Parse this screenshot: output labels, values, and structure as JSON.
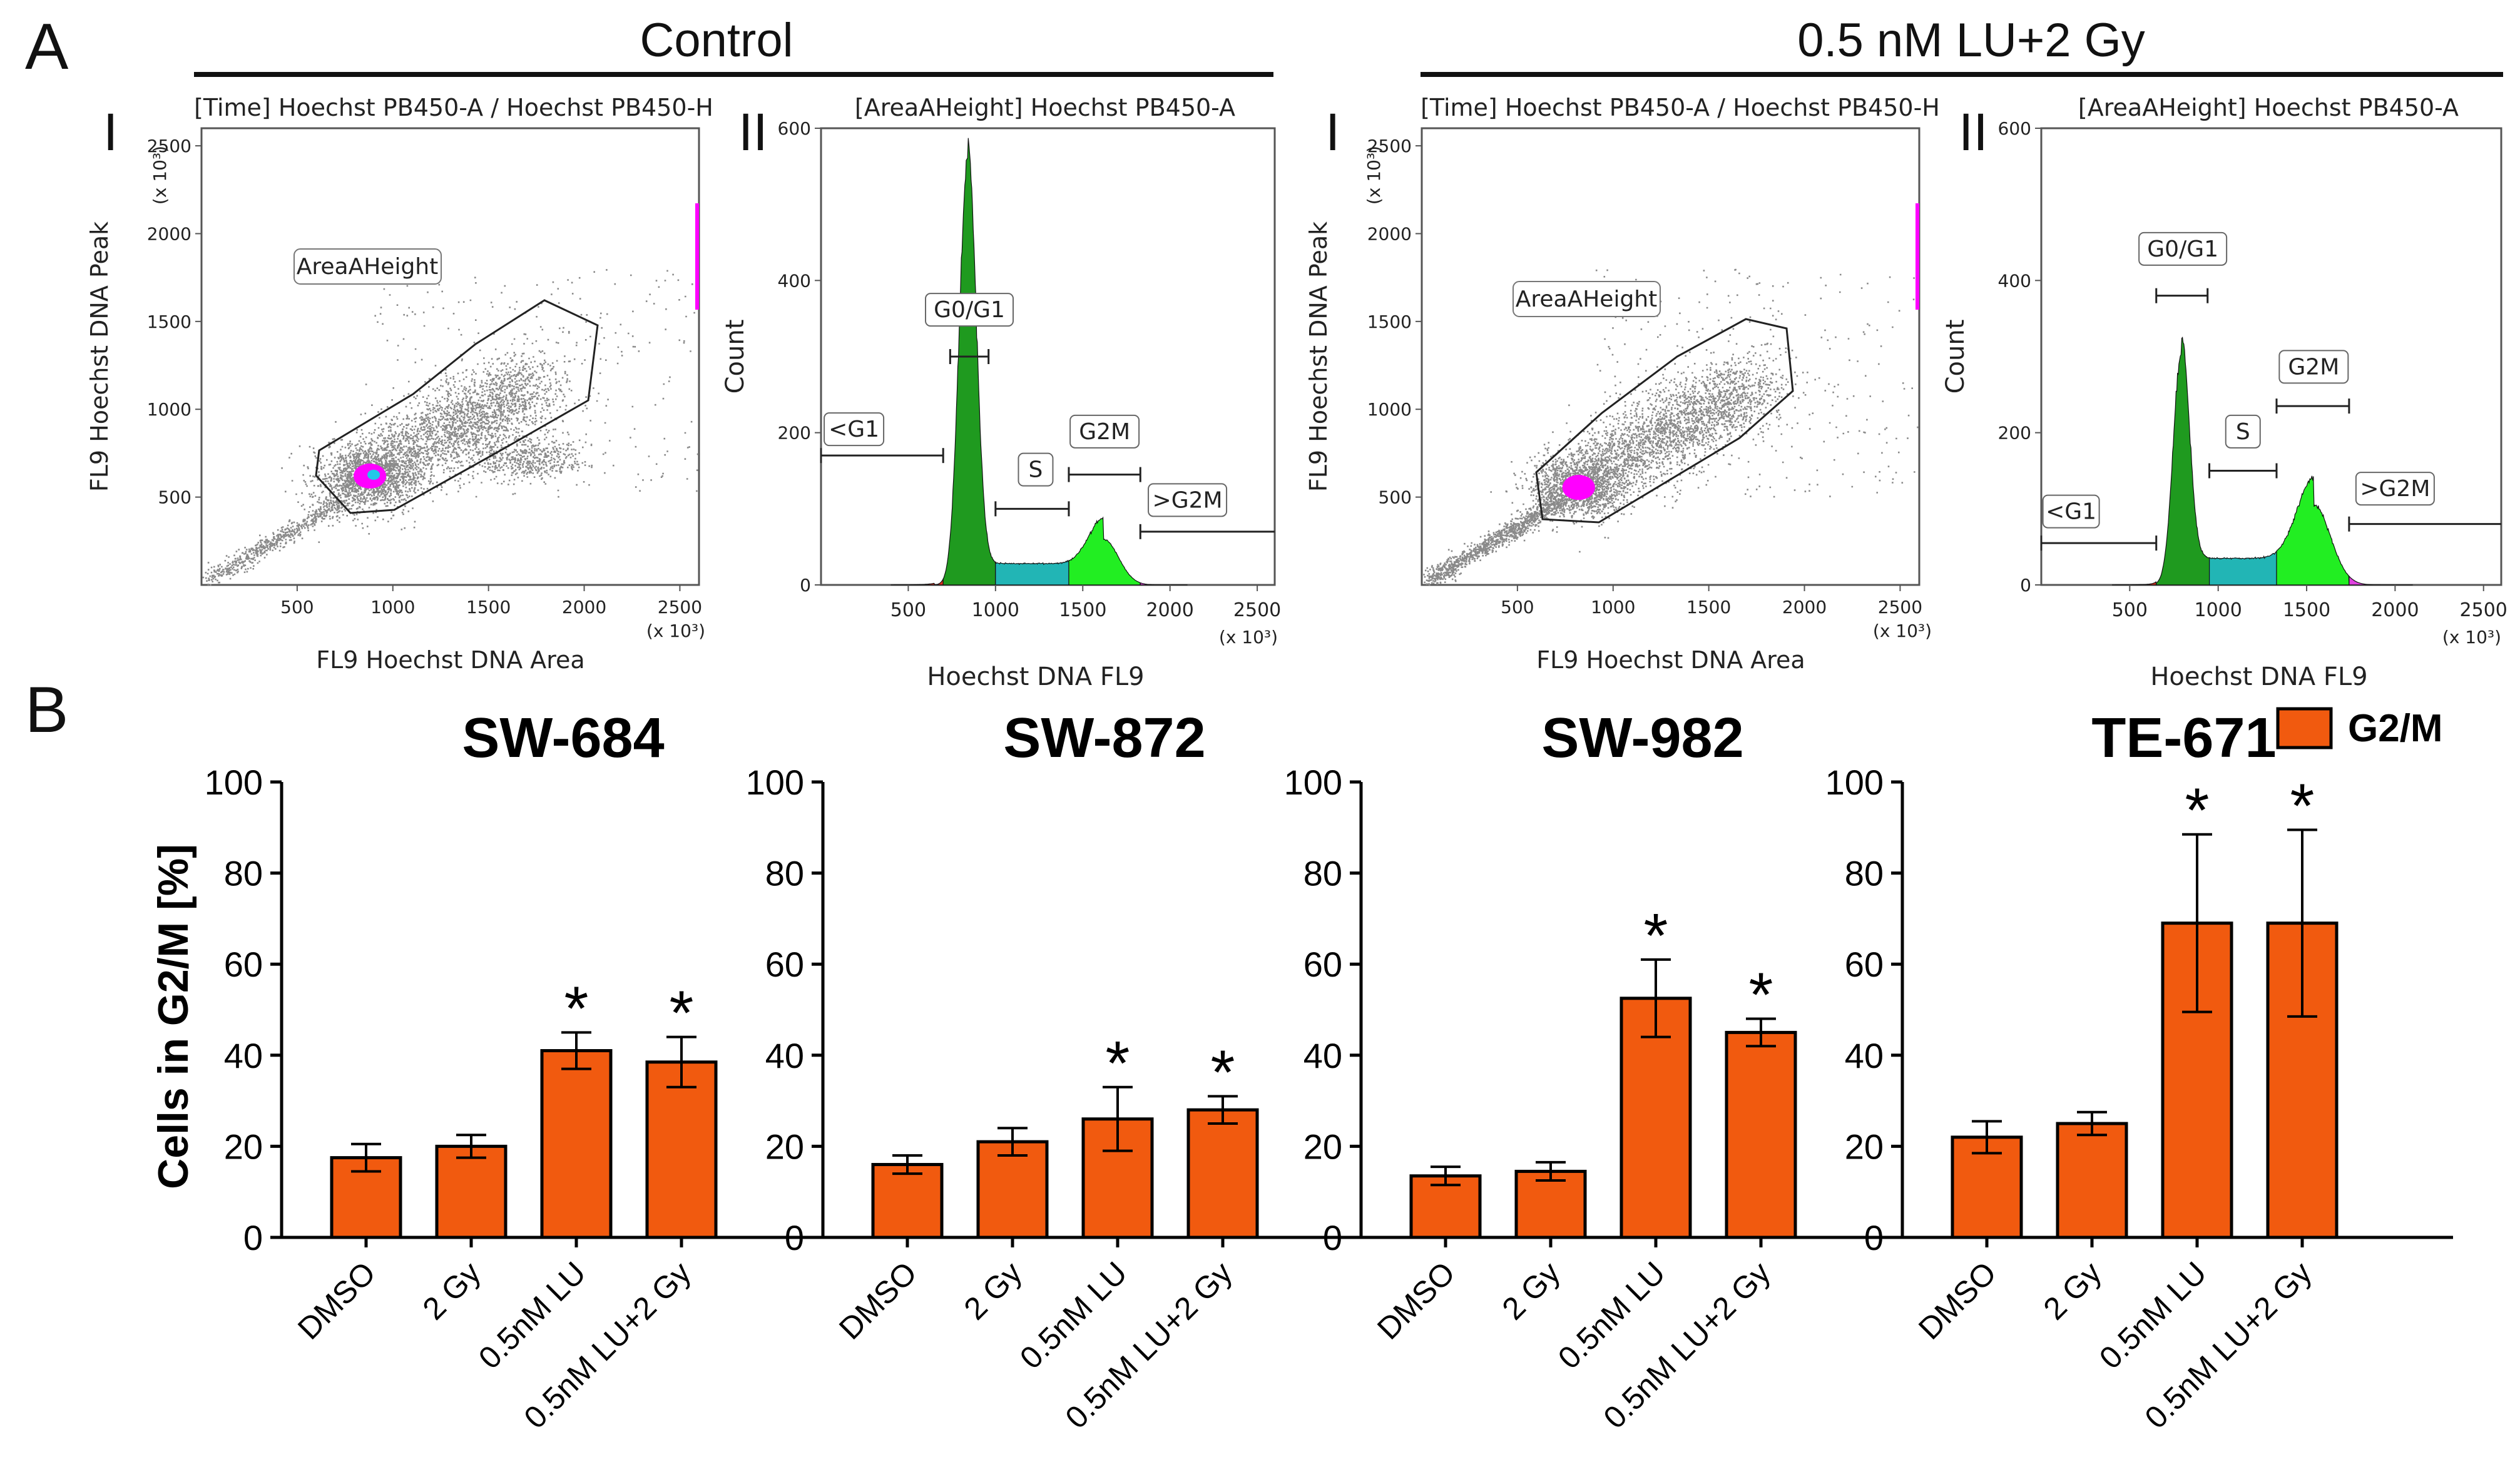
{
  "panel_labels": {
    "A": "A",
    "B": "B"
  },
  "section_a": {
    "groups": [
      {
        "title": "Control"
      },
      {
        "title": "0.5 nM LU+2 Gy"
      }
    ],
    "subpanels": {
      "I": "I",
      "II": "II"
    },
    "scatter": {
      "title": "[Time] Hoechst PB450-A / Hoechst PB450-H",
      "xlabel": "FL9 Hoechst DNA Area",
      "ylabel": "FL9 Hoechst DNA Peak",
      "gate_label": "AreaAHeight",
      "x_ticks": [
        "500",
        "1000",
        "1500",
        "2000",
        "2500"
      ],
      "y_ticks": [
        "500",
        "1000",
        "1500",
        "2000",
        "2500"
      ],
      "scale_x": "(x 10³)",
      "scale_y": "(x 10³)"
    },
    "histogram": {
      "title": "[AreaAHeight] Hoechst PB450-A",
      "xlabel": "Hoechst DNA FL9",
      "ylabel": "Count",
      "x_ticks": [
        "500",
        "1000",
        "1500",
        "2000",
        "2500"
      ],
      "y_ticks": [
        "0",
        "200",
        "400",
        "600"
      ],
      "scale_x": "(x 10³)",
      "gates": {
        "lt_g1": "<G1",
        "g0g1": "G0/G1",
        "s": "S",
        "g2m": "G2M",
        "gt_g2m": ">G2M"
      }
    },
    "colors": {
      "g1": "#1f9a1f",
      "s": "#22b5b5",
      "g2m": "#22ee22",
      "dots": "#8a8a8a",
      "core": "#ff00ff"
    }
  },
  "legend": {
    "label": "G2/M",
    "color": "#f15a0f"
  },
  "chart_data": [
    {
      "type": "bar",
      "title": "SW-684",
      "categories": [
        "DMSO",
        "2 Gy",
        "0.5nM LU",
        "0.5nM LU+2 Gy"
      ],
      "values": [
        17.5,
        20,
        41,
        38.5
      ],
      "errors": [
        3,
        2.5,
        4,
        5.5
      ],
      "significant": [
        "",
        "",
        "*",
        "*"
      ],
      "ylabel": "Cells in G2/M [%]",
      "ylim": [
        0,
        100
      ],
      "yticks": [
        "0",
        "20",
        "40",
        "60",
        "80",
        "100"
      ]
    },
    {
      "type": "bar",
      "title": "SW-872",
      "categories": [
        "DMSO",
        "2 Gy",
        "0.5nM LU",
        "0.5nM LU+2 Gy"
      ],
      "values": [
        16,
        21,
        26,
        28
      ],
      "errors": [
        2,
        3,
        7,
        3
      ],
      "significant": [
        "",
        "",
        "*",
        "*"
      ],
      "ylabel": "",
      "ylim": [
        0,
        100
      ],
      "yticks": [
        "0",
        "20",
        "40",
        "60",
        "80",
        "100"
      ]
    },
    {
      "type": "bar",
      "title": "SW-982",
      "categories": [
        "DMSO",
        "2 Gy",
        "0.5nM LU",
        "0.5nM LU+2 Gy"
      ],
      "values": [
        13.5,
        14.5,
        52.5,
        45
      ],
      "errors": [
        2,
        2,
        8.5,
        3
      ],
      "significant": [
        "",
        "",
        "*",
        "*"
      ],
      "ylabel": "",
      "ylim": [
        0,
        100
      ],
      "yticks": [
        "0",
        "20",
        "40",
        "60",
        "80",
        "100"
      ]
    },
    {
      "type": "bar",
      "title": "TE-671",
      "categories": [
        "DMSO",
        "2 Gy",
        "0.5nM LU",
        "0.5nM LU+2 Gy"
      ],
      "values": [
        22,
        25,
        69,
        69
      ],
      "errors": [
        3.5,
        2.5,
        19.5,
        20.5
      ],
      "significant": [
        "",
        "",
        "*",
        "*"
      ],
      "ylabel": "",
      "ylim": [
        0,
        100
      ],
      "yticks": [
        "0",
        "20",
        "40",
        "60",
        "80",
        "100"
      ]
    }
  ]
}
